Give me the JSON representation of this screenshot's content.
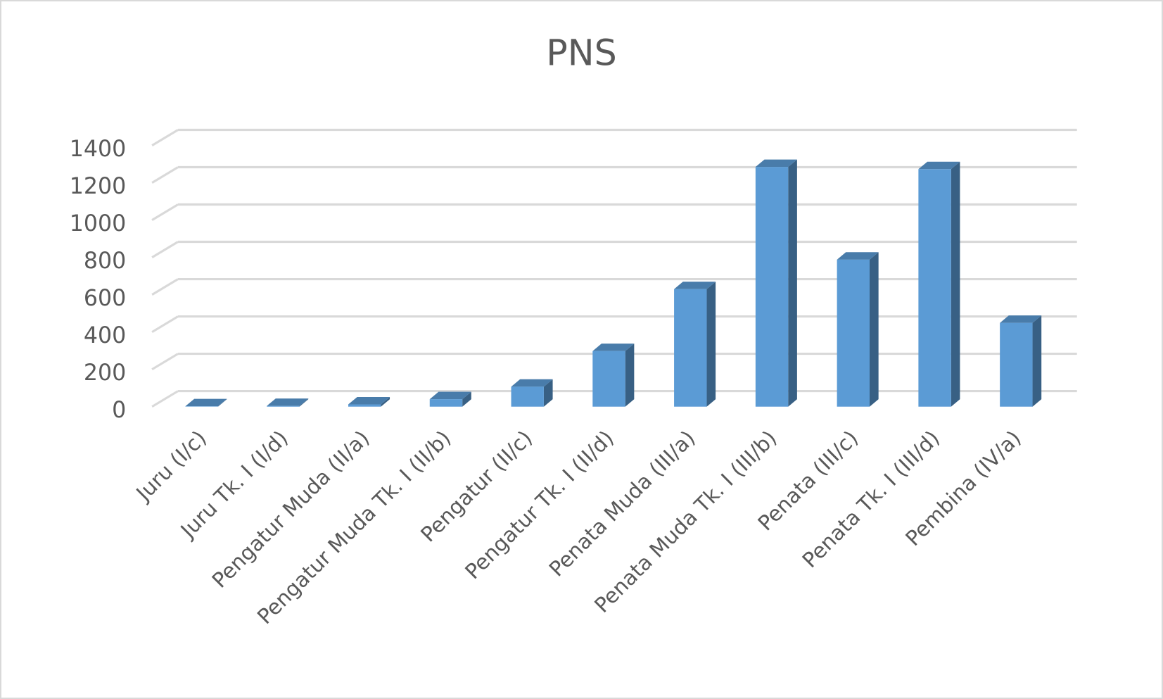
{
  "chart_data": {
    "type": "bar",
    "title": "PNS",
    "categories": [
      "Juru (I/c)",
      "Juru Tk. I (I/d)",
      "Pengatur Muda (II/a)",
      "Pengatur Muda Tk. I (II/b)",
      "Pengatur (II/c)",
      "Pengatur Tk. I (II/d)",
      "Penata Muda (III/a)",
      "Penata Muda Tk. I (III/b)",
      "Penata (III/c)",
      "Penata Tk. I (III/d)",
      "Pembina (IV/a)"
    ],
    "values": [
      2,
      4,
      12,
      40,
      107,
      298,
      630,
      1285,
      788,
      1273,
      449
    ],
    "color": "#5b9bd5",
    "ylim": [
      0,
      1400
    ],
    "yticks": [
      0,
      200,
      400,
      600,
      800,
      1000,
      1200,
      1400
    ],
    "grid": true
  }
}
